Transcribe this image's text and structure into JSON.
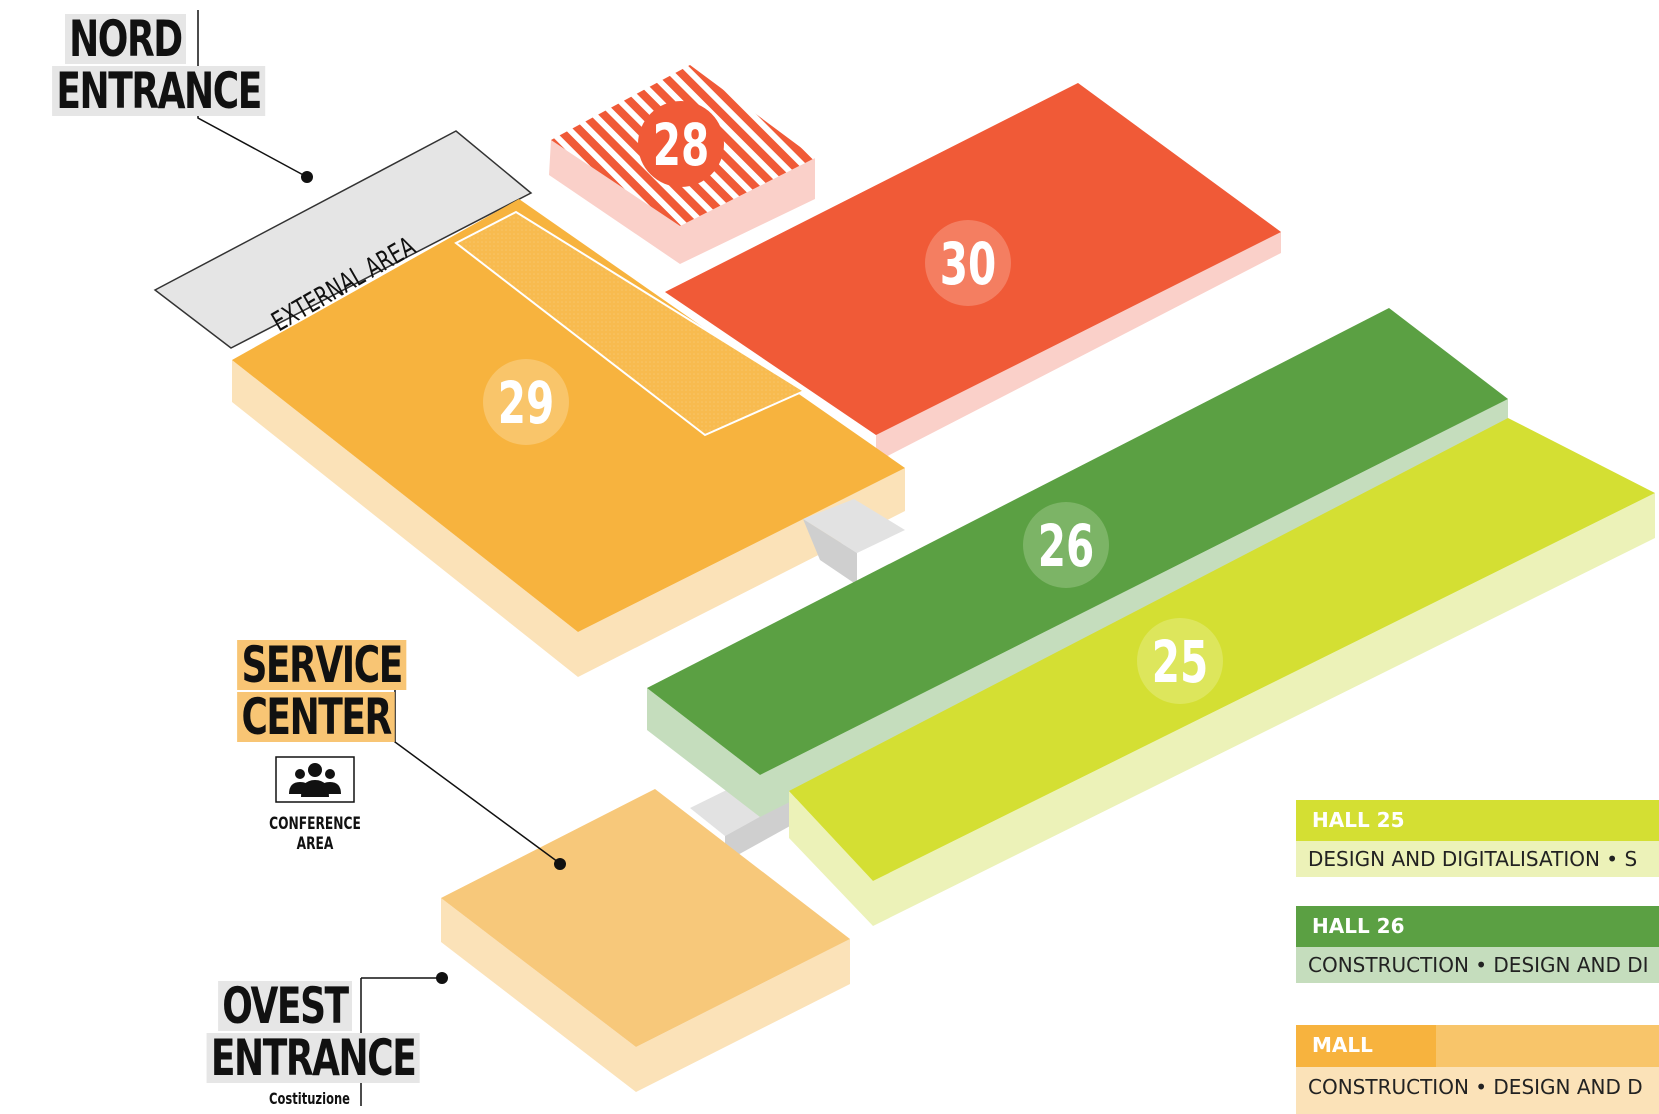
{
  "entrances": {
    "nord": {
      "line1": "NORD",
      "line2": "ENTRANCE"
    },
    "ovest": {
      "line1": "OVEST",
      "line2": "ENTRANCE",
      "sub": "Costituzione"
    }
  },
  "service_center": {
    "line1": "SERVICE",
    "line2": "CENTER",
    "icon": "people-icon",
    "caption": "CONFERENCE AREA"
  },
  "external_area": "EXTERNAL AREA",
  "halls": {
    "h28": "28",
    "h29": "29",
    "h30": "30",
    "h26": "26",
    "h25": "25"
  },
  "colors": {
    "hall25": "#d4df33",
    "hall26": "#5ba043",
    "hall29": "#f7b33e",
    "hall30": "#f05a37",
    "hall28": "#f05a37",
    "mall": "#f7c87a",
    "external": "#e5e5e5"
  },
  "legend": [
    {
      "title": "HALL 25",
      "desc": "DESIGN AND DIGITALISATION • S",
      "head_color": "#d4df33",
      "sub_color": "#ecf2b8"
    },
    {
      "title": "HALL 26",
      "desc": "CONSTRUCTION • DESIGN AND DI",
      "head_color": "#5ba043",
      "sub_color": "#c5ddbd"
    },
    {
      "title": "MALL",
      "desc": "CONSTRUCTION • DESIGN AND D",
      "head_color": "#f7b33e",
      "sub_color": "#fbe2b8"
    }
  ]
}
